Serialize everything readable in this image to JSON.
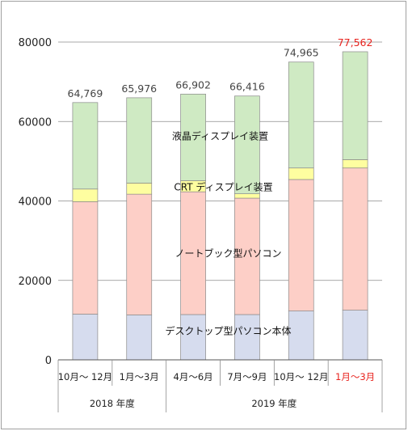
{
  "chart_data": {
    "type": "bar",
    "stacked": true,
    "categories": [
      "10月～ 12月",
      "1月～3月",
      "4月～6月",
      "7月～9月",
      "10月～ 12月",
      "1月～3月"
    ],
    "groups": [
      {
        "label": "2018 年度",
        "span": [
          0,
          1
        ]
      },
      {
        "label": "2019 年度",
        "span": [
          2,
          5
        ]
      }
    ],
    "ylim": [
      0,
      80000
    ],
    "yticks": [
      "0",
      "20000",
      "40000",
      "60000",
      "80000"
    ],
    "series": [
      {
        "name": "デスクトップ型パソコン本体",
        "color": "#d6dcee",
        "values": [
          11500,
          11300,
          11400,
          11400,
          12300,
          12500
        ]
      },
      {
        "name": "ノートブック型パソコン",
        "color": "#fdcfc7",
        "values": [
          28300,
          30400,
          30900,
          29300,
          33100,
          35800
        ]
      },
      {
        "name": "CRT ディスプレイ装置",
        "color": "#fefea0",
        "values": [
          3200,
          2800,
          2800,
          1100,
          2900,
          2100
        ]
      },
      {
        "name": "液晶ディスプレイ装置",
        "color": "#cfeac3",
        "values": [
          21769,
          21476,
          21802,
          24616,
          26665,
          27162
        ]
      }
    ],
    "totals": [
      "64,769",
      "65,976",
      "66,902",
      "66,416",
      "74,965",
      "77,562"
    ],
    "highlight_color": "#e8231e",
    "highlight_index": 5,
    "series_label_positions": {
      "液晶ディスプレイ装置": 2,
      "CRT ディスプレイ装置": 2,
      "ノートブック型パソコン": 2,
      "デスクトップ型パソコン本体": 2
    }
  }
}
